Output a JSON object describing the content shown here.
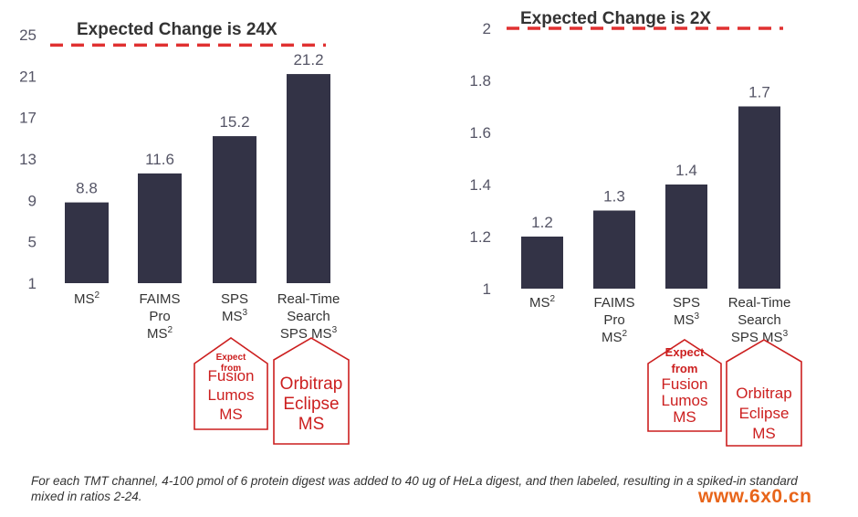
{
  "charts": [
    {
      "type": "bar",
      "annotation": "Expected  Change is 24X",
      "ylim": [
        1,
        25
      ],
      "y_ticks": [
        "1",
        "5",
        "9",
        "13",
        "17",
        "21",
        "25"
      ],
      "y_tick_values": [
        1,
        5,
        9,
        13,
        17,
        21,
        25
      ],
      "reference_line": 24,
      "categories": [
        {
          "lines": [
            "MS"
          ],
          "sup": "2"
        },
        {
          "lines": [
            "FAIMS",
            "Pro",
            "MS"
          ],
          "sup": "2"
        },
        {
          "lines": [
            "SPS",
            "MS"
          ],
          "sup": "3"
        },
        {
          "lines": [
            "Real-Time",
            "Search",
            "SPS MS"
          ],
          "sup": "3"
        }
      ],
      "values": [
        8.8,
        11.6,
        15.2,
        21.2
      ],
      "value_labels": [
        "8.8",
        "11.6",
        "15.2",
        "21.2"
      ],
      "instrument_tags": [
        {
          "under": 2,
          "small": [
            "Expect",
            "from"
          ],
          "big": [
            "Fusion",
            "Lumos",
            "MS"
          ]
        },
        {
          "under": 3,
          "small": [],
          "big": [
            "Orbitrap",
            "Eclipse",
            "MS"
          ]
        }
      ]
    },
    {
      "type": "bar",
      "annotation": "Expected Change is 2X",
      "ylim": [
        1,
        2
      ],
      "y_ticks": [
        "1",
        "1.2",
        "1.4",
        "1.6",
        "1.8",
        "2"
      ],
      "y_tick_values": [
        1,
        1.2,
        1.4,
        1.6,
        1.8,
        2
      ],
      "reference_line": 2,
      "categories": [
        {
          "lines": [
            "MS"
          ],
          "sup": "2"
        },
        {
          "lines": [
            "FAIMS",
            "Pro",
            "MS"
          ],
          "sup": "2"
        },
        {
          "lines": [
            "SPS",
            "MS"
          ],
          "sup": "3"
        },
        {
          "lines": [
            "Real-Time",
            "Search",
            "SPS MS"
          ],
          "sup": "3"
        }
      ],
      "values": [
        1.2,
        1.3,
        1.4,
        1.7
      ],
      "value_labels": [
        "1.2",
        "1.3",
        "1.4",
        "1.7"
      ],
      "instrument_tags": [
        {
          "under": 2,
          "small": [],
          "big": [
            "Expect",
            "from",
            "Fusion",
            "Lumos",
            "MS"
          ]
        },
        {
          "under": 3,
          "small": [],
          "big": [
            "Orbitrap",
            "Eclipse",
            "MS"
          ]
        }
      ]
    }
  ],
  "chart_data": [
    {
      "type": "bar",
      "categories": [
        "MS2",
        "FAIMS Pro MS2",
        "SPS MS3",
        "Real-Time Search SPS MS3"
      ],
      "values": [
        8.8,
        11.6,
        15.2,
        21.2
      ],
      "ylim": [
        1,
        25
      ],
      "annotations": [
        "Expected  Change is 24X"
      ],
      "reference_line": 24
    },
    {
      "type": "bar",
      "categories": [
        "MS2",
        "FAIMS Pro MS2",
        "SPS MS3",
        "Real-Time Search SPS MS3"
      ],
      "values": [
        1.2,
        1.3,
        1.4,
        1.7
      ],
      "ylim": [
        1,
        2
      ],
      "annotations": [
        "Expected Change is 2X"
      ],
      "reference_line": 2
    }
  ],
  "colors": {
    "bar": "#333346",
    "reference_line": "#e03131",
    "tag": "#cc1f1f",
    "tick_text": "#555566",
    "text": "#333333",
    "watermark": "#e8651a"
  },
  "caption": "For each TMT channel, 4-100 pmol of 6 protein digest was added to 40 ug of HeLa digest, and then labeled, resulting in a spiked-in standard mixed in ratios 2-24.",
  "watermark": "www.6x0.cn"
}
